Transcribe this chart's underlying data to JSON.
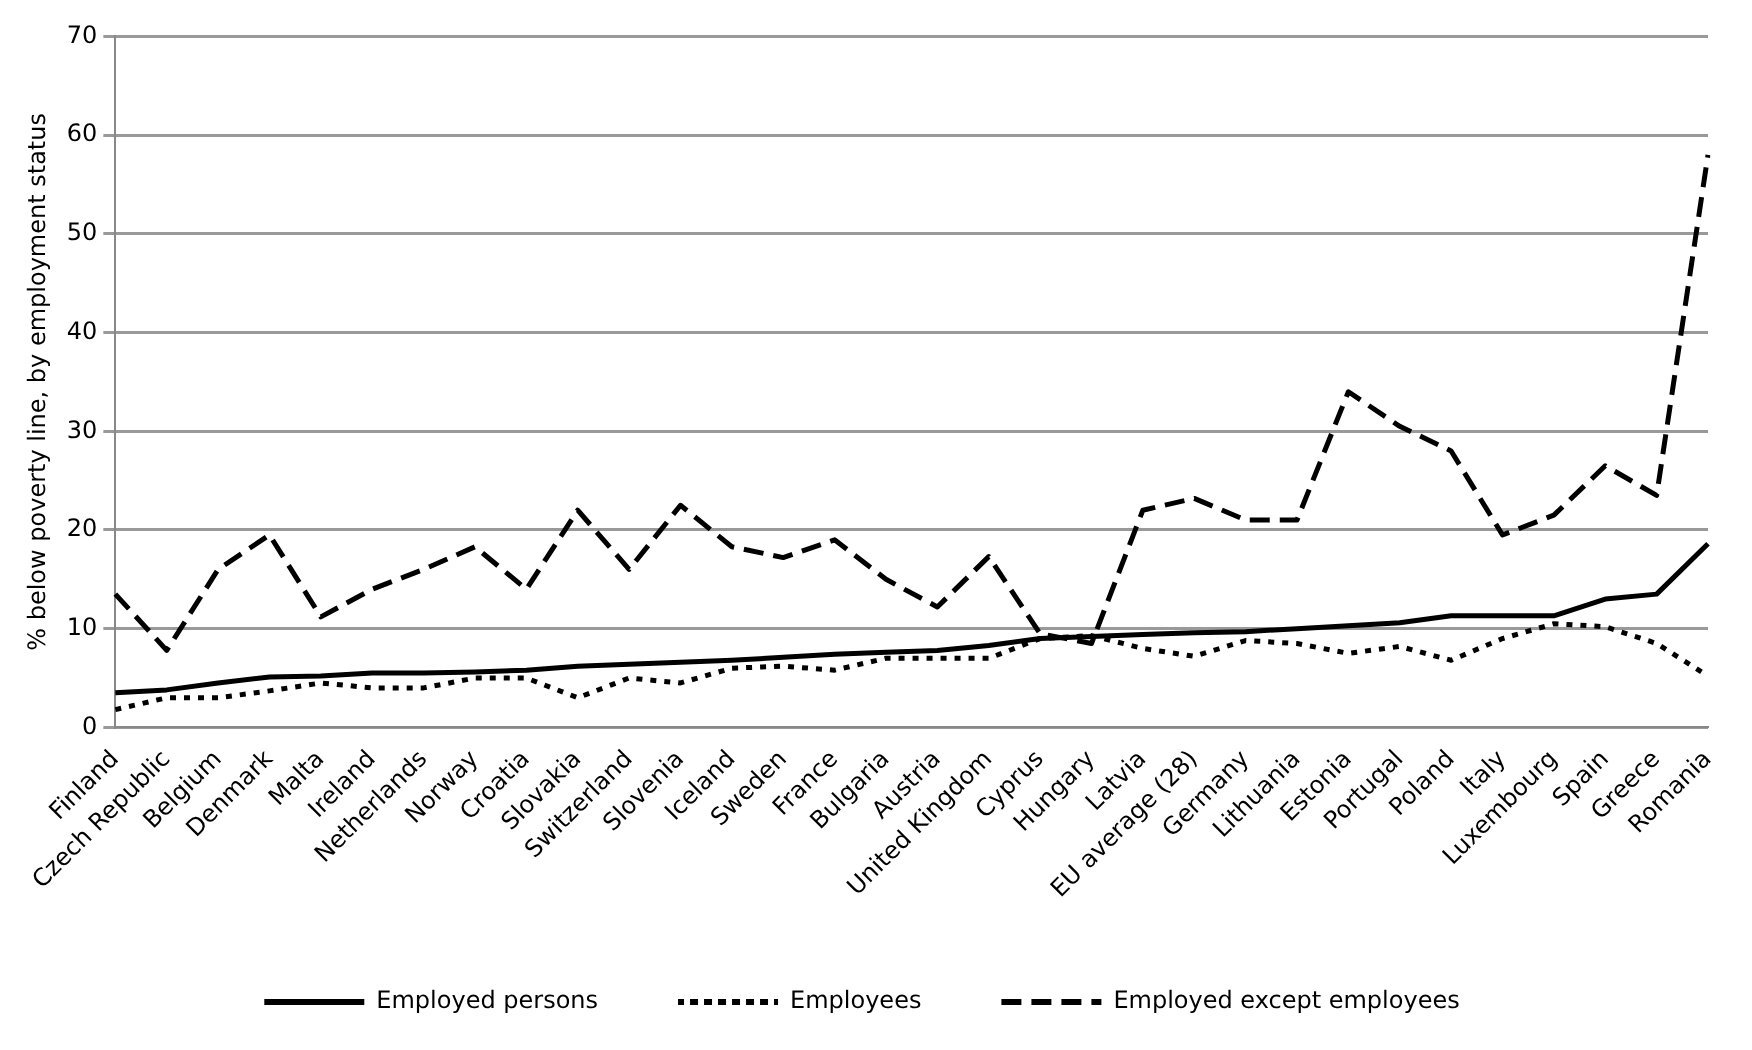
{
  "chart_data": {
    "type": "line",
    "ylabel": "% below poverty line, by employment status",
    "categories": [
      "Finland",
      "Czech Republic",
      "Belgium",
      "Denmark",
      "Malta",
      "Ireland",
      "Netherlands",
      "Norway",
      "Croatia",
      "Slovakia",
      "Switzerland",
      "Slovenia",
      "Iceland",
      "Sweden",
      "France",
      "Bulgaria",
      "Austria",
      "United Kingdom",
      "Cyprus",
      "Hungary",
      "Latvia",
      "EU average (28)",
      "Germany",
      "Lithuania",
      "Estonia",
      "Portugal",
      "Poland",
      "Italy",
      "Luxembourg",
      "Spain",
      "Greece",
      "Romania"
    ],
    "series": [
      {
        "name": "Employed persons",
        "color": "#000000",
        "line_style": "solid",
        "values": [
          3.5,
          3.8,
          4.5,
          5.1,
          5.2,
          5.5,
          5.5,
          5.6,
          5.8,
          6.2,
          6.4,
          6.6,
          6.8,
          7.1,
          7.4,
          7.6,
          7.8,
          8.3,
          9,
          9.2,
          9.4,
          9.6,
          9.7,
          10,
          10.3,
          10.6,
          11.3,
          11.3,
          11.3,
          13,
          13.5,
          18.6
        ]
      },
      {
        "name": "Employees",
        "color": "#000000",
        "line_style": "dotted",
        "values": [
          1.8,
          3,
          3,
          3.7,
          4.5,
          4,
          4,
          5,
          5,
          3,
          5,
          4.5,
          6,
          6.2,
          5.8,
          7,
          7,
          7,
          9,
          9.3,
          8,
          7.2,
          8.8,
          8.5,
          7.5,
          8.2,
          6.8,
          9,
          10.5,
          10.2,
          8.5,
          5.2
        ]
      },
      {
        "name": "Employed except employees",
        "color": "#000000",
        "line_style": "dashed",
        "values": [
          13.5,
          7.8,
          16,
          19.5,
          11.2,
          14,
          16,
          18.3,
          14,
          22,
          16,
          22.5,
          18.3,
          17.2,
          19,
          15,
          12.2,
          17.3,
          9.5,
          8.5,
          22,
          23.2,
          21,
          21,
          34,
          30.5,
          28,
          19.5,
          21.5,
          26.5,
          23.5,
          58
        ]
      }
    ],
    "ylim": [
      0,
      70
    ],
    "yticks": [
      0,
      10,
      20,
      30,
      40,
      50,
      60,
      70
    ],
    "grid": "y",
    "legend": "bottom",
    "marker": "none"
  }
}
